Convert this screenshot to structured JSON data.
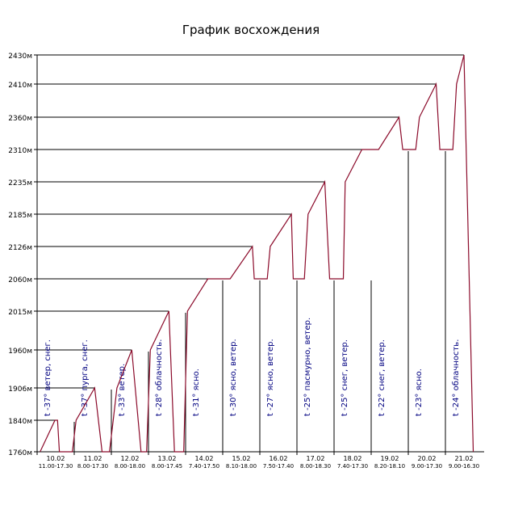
{
  "chart_data": {
    "type": "line",
    "title": "График восхождения",
    "xlabel": "",
    "ylabel": "",
    "y_ticks": [
      "1760м",
      "1840м",
      "1906м",
      "1960м",
      "2015м",
      "2060м",
      "2126м",
      "2185м",
      "2235м",
      "2310м",
      "2360м",
      "2410м",
      "2430м"
    ],
    "days": [
      {
        "date": "10.02",
        "time": "11.00-17.30",
        "weather": "t -37° ветер, снег."
      },
      {
        "date": "11.02",
        "time": "8.00-17.30",
        "weather": "t -37° пурга, снег."
      },
      {
        "date": "12.02",
        "time": "8.00-18.00",
        "weather": "t -33° ветер."
      },
      {
        "date": "13.02",
        "time": "8.00-17.45",
        "weather": "t -28° облачность."
      },
      {
        "date": "14.02",
        "time": "7.40-17.50",
        "weather": "t -31° ясно."
      },
      {
        "date": "15.02",
        "time": "8.10-18.00",
        "weather": "t -30° ясно, ветер."
      },
      {
        "date": "16.02",
        "time": "7.50-17.40",
        "weather": "t -27° ясно, ветер."
      },
      {
        "date": "17.02",
        "time": "8.00-18.30",
        "weather": "t -25° пасмурно, ветер."
      },
      {
        "date": "18.02",
        "time": "7.40-17.30",
        "weather": "t -25° снег, ветер."
      },
      {
        "date": "19.02",
        "time": "8.20-18.10",
        "weather": "t -22° снег, ветер."
      },
      {
        "date": "20.02",
        "time": "9.00-17.30",
        "weather": "t -23° ясно."
      },
      {
        "date": "21.02",
        "time": "9.00-16.30",
        "weather": "t -24° облачность."
      }
    ],
    "series": [
      {
        "color": "#8b0a2a",
        "points": [
          [
            0.08,
            1760
          ],
          [
            0.48,
            1840
          ],
          [
            0.55,
            1840
          ],
          [
            0.6,
            1760
          ],
          [
            0.95,
            1760
          ],
          [
            1.05,
            1840
          ],
          [
            1.55,
            1906
          ],
          [
            1.75,
            1760
          ],
          [
            1.95,
            1760
          ],
          [
            2.05,
            1840
          ],
          [
            2.15,
            1906
          ],
          [
            2.55,
            1960
          ],
          [
            2.8,
            1760
          ],
          [
            2.95,
            1760
          ],
          [
            3.05,
            1960
          ],
          [
            3.55,
            2015
          ],
          [
            3.7,
            1760
          ],
          [
            3.95,
            1760
          ],
          [
            4.05,
            2015
          ],
          [
            4.6,
            2060
          ],
          [
            5.2,
            2060
          ],
          [
            5.8,
            2126
          ],
          [
            5.85,
            2060
          ],
          [
            6.2,
            2060
          ],
          [
            6.28,
            2126
          ],
          [
            6.85,
            2185
          ],
          [
            6.9,
            2060
          ],
          [
            7.2,
            2060
          ],
          [
            7.3,
            2185
          ],
          [
            7.75,
            2235
          ],
          [
            7.88,
            2060
          ],
          [
            8.25,
            2060
          ],
          [
            8.3,
            2235
          ],
          [
            8.75,
            2310
          ],
          [
            9.2,
            2310
          ],
          [
            9.75,
            2360
          ],
          [
            9.85,
            2310
          ],
          [
            10.2,
            2310
          ],
          [
            10.3,
            2360
          ],
          [
            10.75,
            2410
          ],
          [
            10.85,
            2310
          ],
          [
            11.2,
            2310
          ],
          [
            11.3,
            2410
          ],
          [
            11.5,
            2430
          ],
          [
            11.75,
            1760
          ]
        ]
      }
    ],
    "guides": [
      {
        "level": 1840,
        "from": 0.0,
        "to": 0.48
      },
      {
        "level": 1906,
        "from": 0.0,
        "to": 1.55
      },
      {
        "level": 1960,
        "from": 0.0,
        "to": 2.55
      },
      {
        "level": 2015,
        "from": 0.0,
        "to": 3.55
      },
      {
        "level": 2060,
        "from": 0.0,
        "to": 4.6
      },
      {
        "level": 2126,
        "from": 0.0,
        "to": 5.8
      },
      {
        "level": 2185,
        "from": 0.0,
        "to": 6.85
      },
      {
        "level": 2235,
        "from": 0.0,
        "to": 7.75
      },
      {
        "level": 2310,
        "from": 0.0,
        "to": 8.75
      },
      {
        "level": 2360,
        "from": 0.0,
        "to": 9.75
      },
      {
        "level": 2410,
        "from": 0.0,
        "to": 10.75
      },
      {
        "level": 2430,
        "from": 0.0,
        "to": 11.5
      }
    ],
    "colors": {
      "line": "#8b0a2a",
      "annotation": "#000080",
      "axis": "#000000"
    }
  }
}
